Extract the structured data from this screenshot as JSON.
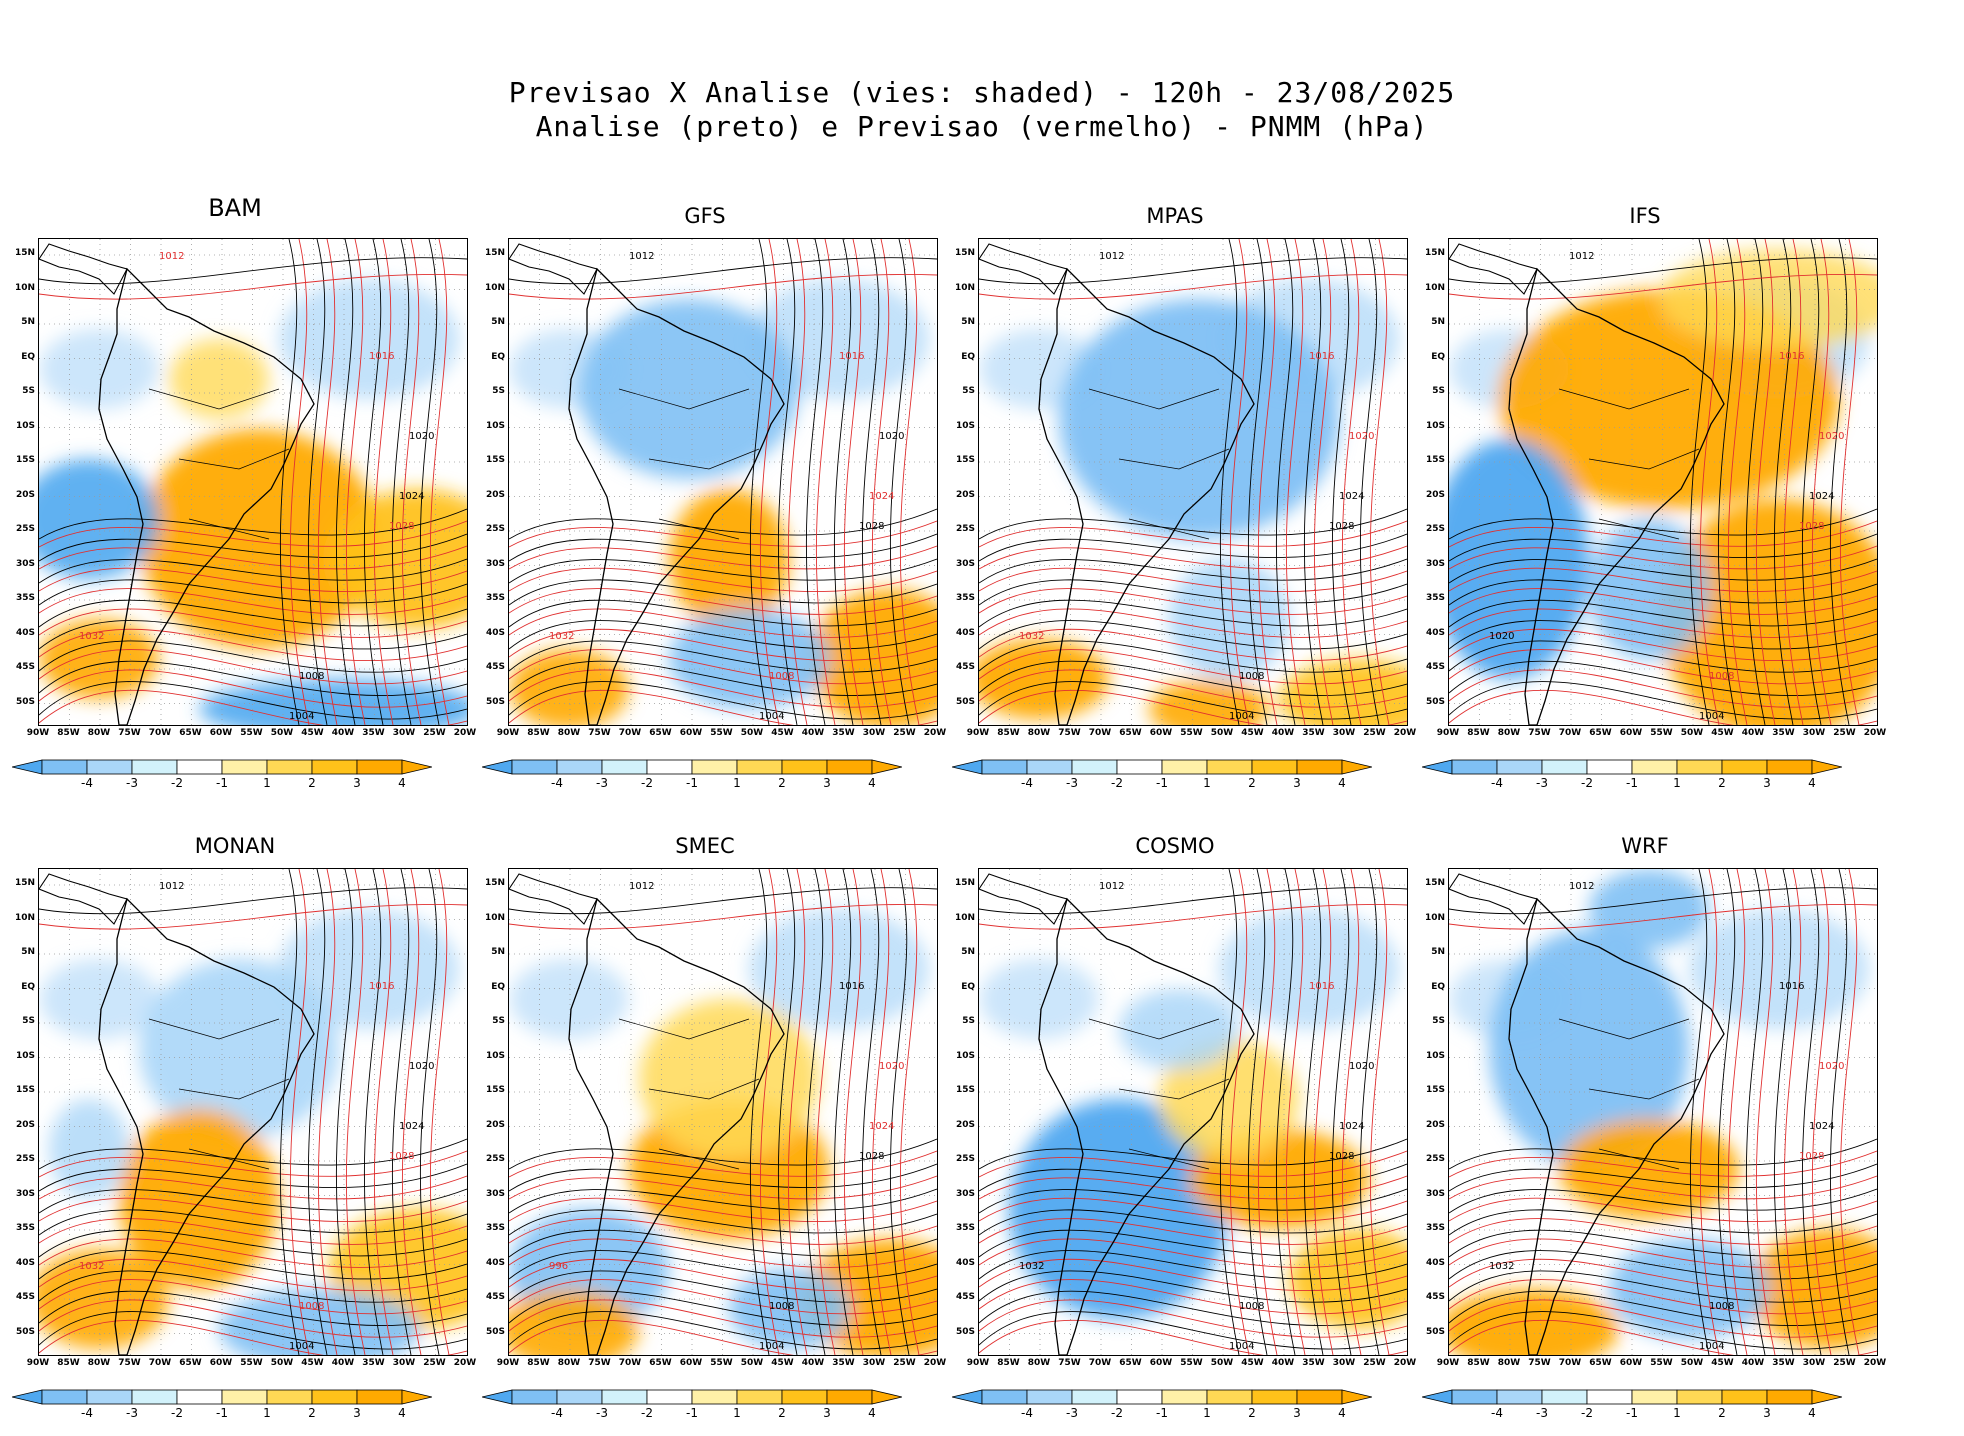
{
  "title": {
    "line1": "Previsao X Analise (vies: shaded) - 120h - 23/08/2025",
    "line2": "Analise (preto) e Previsao (vermelho) - PNMM (hPa)"
  },
  "lat_labels": [
    "15N",
    "10N",
    "5N",
    "EQ",
    "5S",
    "10S",
    "15S",
    "20S",
    "25S",
    "30S",
    "35S",
    "40S",
    "45S",
    "50S"
  ],
  "lon_labels": [
    "90W",
    "85W",
    "80W",
    "75W",
    "70W",
    "65W",
    "60W",
    "55W",
    "50W",
    "45W",
    "40W",
    "35W",
    "30W",
    "25W",
    "20W"
  ],
  "colorbar": {
    "labels": [
      "-4",
      "-3",
      "-2",
      "-1",
      "1",
      "2",
      "3",
      "4"
    ],
    "colors": [
      "#4fa8f0",
      "#7fc0f4",
      "#aad6f8",
      "#d2f2fb",
      "#ffffff",
      "#fff1a8",
      "#ffd955",
      "#ffc21a",
      "#ffaa00"
    ]
  },
  "panels": [
    {
      "name": "BAM",
      "bias": "warm-south",
      "labels": [
        {
          "t": "1012",
          "c": "r"
        },
        {
          "t": "1016",
          "c": "r"
        },
        {
          "t": "1020",
          "c": "k"
        },
        {
          "t": "1024",
          "c": "k"
        },
        {
          "t": "1028",
          "c": "r"
        },
        {
          "t": "1008",
          "c": "k"
        },
        {
          "t": "1004",
          "c": "k"
        },
        {
          "t": "1032",
          "c": "r"
        }
      ]
    },
    {
      "name": "GFS",
      "bias": "cool-north",
      "labels": [
        {
          "t": "1012",
          "c": "k"
        },
        {
          "t": "1016",
          "c": "r"
        },
        {
          "t": "1020",
          "c": "k"
        },
        {
          "t": "1024",
          "c": "r"
        },
        {
          "t": "1028",
          "c": "k"
        },
        {
          "t": "1008",
          "c": "r"
        },
        {
          "t": "1004",
          "c": "k"
        },
        {
          "t": "1032",
          "c": "r"
        }
      ]
    },
    {
      "name": "MPAS",
      "bias": "cool-all",
      "labels": [
        {
          "t": "1012",
          "c": "k"
        },
        {
          "t": "1016",
          "c": "r"
        },
        {
          "t": "1020",
          "c": "r"
        },
        {
          "t": "1024",
          "c": "k"
        },
        {
          "t": "1028",
          "c": "k"
        },
        {
          "t": "1008",
          "c": "k"
        },
        {
          "t": "1004",
          "c": "k"
        },
        {
          "t": "1032",
          "c": "r"
        }
      ]
    },
    {
      "name": "IFS",
      "bias": "warm-all",
      "labels": [
        {
          "t": "1012",
          "c": "k"
        },
        {
          "t": "1016",
          "c": "r"
        },
        {
          "t": "1020",
          "c": "r"
        },
        {
          "t": "1024",
          "c": "k"
        },
        {
          "t": "1028",
          "c": "r"
        },
        {
          "t": "1008",
          "c": "r"
        },
        {
          "t": "1004",
          "c": "k"
        },
        {
          "t": "1020",
          "c": "k"
        }
      ]
    },
    {
      "name": "MONAN",
      "bias": "mixed",
      "labels": [
        {
          "t": "1012",
          "c": "k"
        },
        {
          "t": "1016",
          "c": "r"
        },
        {
          "t": "1020",
          "c": "k"
        },
        {
          "t": "1024",
          "c": "k"
        },
        {
          "t": "1028",
          "c": "r"
        },
        {
          "t": "1008",
          "c": "r"
        },
        {
          "t": "1004",
          "c": "k"
        },
        {
          "t": "1032",
          "c": "r"
        }
      ]
    },
    {
      "name": "SMEC",
      "bias": "warm-center",
      "labels": [
        {
          "t": "1012",
          "c": "k"
        },
        {
          "t": "1016",
          "c": "k"
        },
        {
          "t": "1020",
          "c": "r"
        },
        {
          "t": "1024",
          "c": "r"
        },
        {
          "t": "1028",
          "c": "k"
        },
        {
          "t": "1008",
          "c": "k"
        },
        {
          "t": "1004",
          "c": "k"
        },
        {
          "t": "996",
          "c": "r"
        }
      ]
    },
    {
      "name": "COSMO",
      "bias": "cool-south",
      "labels": [
        {
          "t": "1012",
          "c": "k"
        },
        {
          "t": "1016",
          "c": "r"
        },
        {
          "t": "1020",
          "c": "k"
        },
        {
          "t": "1024",
          "c": "k"
        },
        {
          "t": "1028",
          "c": "k"
        },
        {
          "t": "1008",
          "c": "k"
        },
        {
          "t": "1004",
          "c": "k"
        },
        {
          "t": "1032",
          "c": "k"
        }
      ]
    },
    {
      "name": "WRF",
      "bias": "cool-west",
      "labels": [
        {
          "t": "1012",
          "c": "k"
        },
        {
          "t": "1016",
          "c": "k"
        },
        {
          "t": "1020",
          "c": "r"
        },
        {
          "t": "1024",
          "c": "k"
        },
        {
          "t": "1028",
          "c": "r"
        },
        {
          "t": "1008",
          "c": "k"
        },
        {
          "t": "1004",
          "c": "k"
        },
        {
          "t": "1032",
          "c": "k"
        }
      ]
    }
  ]
}
